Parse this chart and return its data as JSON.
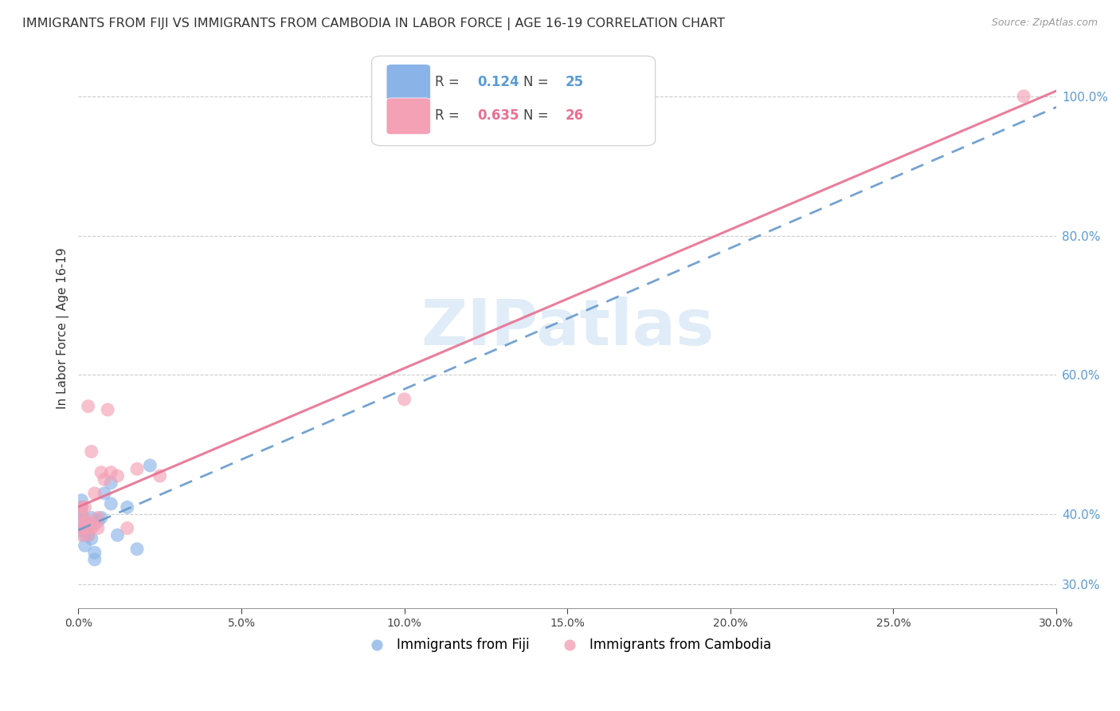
{
  "title": "IMMIGRANTS FROM FIJI VS IMMIGRANTS FROM CAMBODIA IN LABOR FORCE | AGE 16-19 CORRELATION CHART",
  "source": "Source: ZipAtlas.com",
  "ylabel": "In Labor Force | Age 16-19",
  "fiji_R": 0.124,
  "fiji_N": 25,
  "cambodia_R": 0.635,
  "cambodia_N": 26,
  "fiji_color": "#8ab4e8",
  "cambodia_color": "#f4a0b5",
  "fiji_line_color": "#6699cc",
  "cambodia_line_color": "#e87090",
  "watermark_color": "#c8ddf2",
  "fiji_x": [
    0.001,
    0.001,
    0.001,
    0.001,
    0.001,
    0.002,
    0.002,
    0.002,
    0.002,
    0.003,
    0.003,
    0.003,
    0.004,
    0.004,
    0.005,
    0.005,
    0.006,
    0.007,
    0.008,
    0.01,
    0.01,
    0.012,
    0.015,
    0.018,
    0.022
  ],
  "fiji_y": [
    0.38,
    0.39,
    0.4,
    0.41,
    0.42,
    0.355,
    0.37,
    0.375,
    0.38,
    0.37,
    0.38,
    0.385,
    0.365,
    0.395,
    0.335,
    0.345,
    0.39,
    0.395,
    0.43,
    0.415,
    0.445,
    0.37,
    0.41,
    0.35,
    0.47
  ],
  "cambodia_x": [
    0.001,
    0.001,
    0.001,
    0.001,
    0.002,
    0.002,
    0.002,
    0.003,
    0.003,
    0.003,
    0.004,
    0.004,
    0.005,
    0.005,
    0.006,
    0.006,
    0.007,
    0.008,
    0.009,
    0.01,
    0.012,
    0.015,
    0.018,
    0.025,
    0.1,
    0.29
  ],
  "cambodia_y": [
    0.37,
    0.38,
    0.4,
    0.41,
    0.38,
    0.39,
    0.41,
    0.37,
    0.39,
    0.555,
    0.38,
    0.49,
    0.385,
    0.43,
    0.38,
    0.395,
    0.46,
    0.45,
    0.55,
    0.46,
    0.455,
    0.38,
    0.465,
    0.455,
    0.565,
    1.0
  ],
  "xlim": [
    0.0,
    0.3
  ],
  "ylim": [
    0.265,
    1.07
  ],
  "xticks": [
    0.0,
    0.05,
    0.1,
    0.15,
    0.2,
    0.25,
    0.3
  ],
  "yticks_right": [
    0.3,
    0.4,
    0.6,
    0.8,
    1.0
  ],
  "background_color": "#ffffff",
  "grid_color": "#cccccc",
  "title_fontsize": 11.5,
  "axis_label_fontsize": 11,
  "tick_fontsize": 10,
  "right_tick_color": "#5b9bd5",
  "legend_fiji_text_color": "#5b9bd5",
  "legend_cambodia_text_color": "#e87090"
}
